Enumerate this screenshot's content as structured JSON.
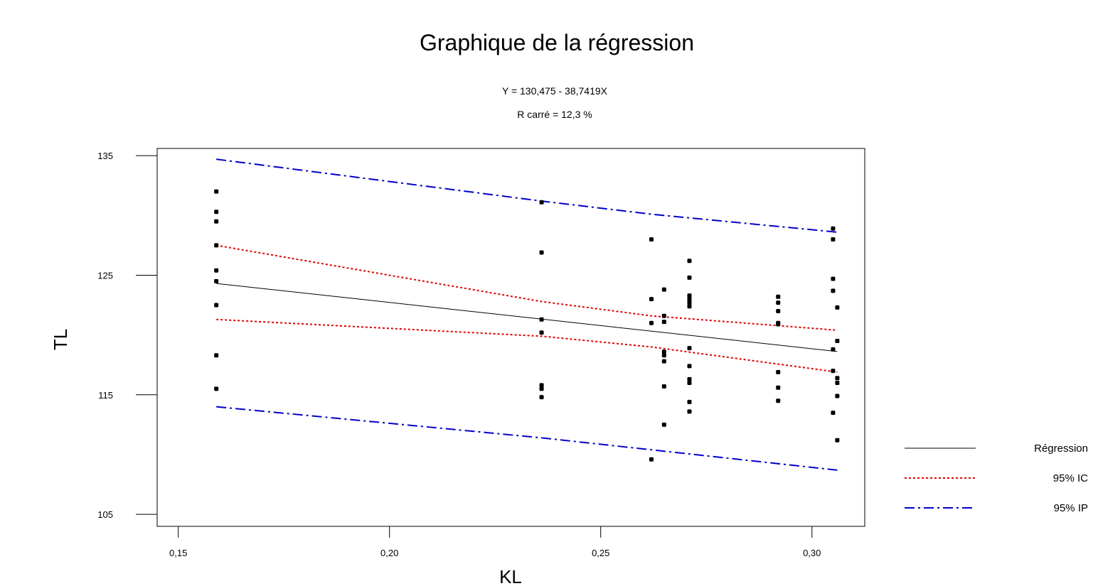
{
  "chart_data": {
    "type": "scatter",
    "title": "Graphique de la régression",
    "subtitle_lines": [
      "Y = 130,475 - 38,7419X",
      "R carré = 12,3 %"
    ],
    "xlabel": "KL",
    "ylabel": "TL",
    "xlim": [
      0.145,
      0.3125
    ],
    "ylim": [
      104,
      135.6
    ],
    "x_ticks": [
      0.15,
      0.2,
      0.25,
      0.3
    ],
    "x_tick_labels": [
      "0,15",
      "0,20",
      "0,25",
      "0,30"
    ],
    "y_ticks": [
      105,
      115,
      125,
      135
    ],
    "y_tick_labels": [
      "105",
      "115",
      "125",
      "135"
    ],
    "grid": false,
    "legend_position": "right",
    "colors": {
      "points": "#000000",
      "regression": "#000000",
      "ci": "#e00000",
      "pi": "#0000cc"
    },
    "series": [
      {
        "name": "Régression",
        "kind": "line",
        "style": "solid",
        "x": [
          0.159,
          0.306
        ],
        "y": [
          124.31,
          118.62
        ]
      },
      {
        "name": "95% IC",
        "kind": "band",
        "style": "dotted",
        "x": [
          0.159,
          0.236,
          0.262,
          0.306
        ],
        "upper": [
          127.5,
          122.8,
          121.6,
          120.4
        ],
        "lower": [
          121.3,
          119.9,
          119.0,
          116.9
        ]
      },
      {
        "name": "95% IP",
        "kind": "band",
        "style": "dashdot",
        "x": [
          0.159,
          0.236,
          0.262,
          0.306
        ],
        "upper": [
          134.7,
          131.2,
          130.1,
          128.6
        ],
        "lower": [
          114.0,
          111.4,
          110.4,
          108.7
        ]
      },
      {
        "name": "",
        "kind": "points",
        "points": [
          [
            0.159,
            132.0
          ],
          [
            0.159,
            130.3
          ],
          [
            0.159,
            129.5
          ],
          [
            0.159,
            127.5
          ],
          [
            0.159,
            125.4
          ],
          [
            0.159,
            124.5
          ],
          [
            0.159,
            122.5
          ],
          [
            0.159,
            118.3
          ],
          [
            0.159,
            115.5
          ],
          [
            0.236,
            131.1
          ],
          [
            0.236,
            126.9
          ],
          [
            0.236,
            121.3
          ],
          [
            0.236,
            120.2
          ],
          [
            0.236,
            115.8
          ],
          [
            0.236,
            115.5
          ],
          [
            0.236,
            114.8
          ],
          [
            0.262,
            128.0
          ],
          [
            0.262,
            123.0
          ],
          [
            0.262,
            121.0
          ],
          [
            0.262,
            109.6
          ],
          [
            0.265,
            123.8
          ],
          [
            0.265,
            121.6
          ],
          [
            0.265,
            121.1
          ],
          [
            0.265,
            118.6
          ],
          [
            0.265,
            118.3
          ],
          [
            0.265,
            117.8
          ],
          [
            0.265,
            115.7
          ],
          [
            0.265,
            112.5
          ],
          [
            0.271,
            126.2
          ],
          [
            0.271,
            124.8
          ],
          [
            0.271,
            123.3
          ],
          [
            0.271,
            123.0
          ],
          [
            0.271,
            122.7
          ],
          [
            0.271,
            122.4
          ],
          [
            0.271,
            118.9
          ],
          [
            0.271,
            117.4
          ],
          [
            0.271,
            116.3
          ],
          [
            0.271,
            116.0
          ],
          [
            0.271,
            114.4
          ],
          [
            0.271,
            113.6
          ],
          [
            0.292,
            123.2
          ],
          [
            0.292,
            122.7
          ],
          [
            0.292,
            122.0
          ],
          [
            0.292,
            121.0
          ],
          [
            0.292,
            120.9
          ],
          [
            0.292,
            116.9
          ],
          [
            0.292,
            115.6
          ],
          [
            0.292,
            114.5
          ],
          [
            0.305,
            128.9
          ],
          [
            0.305,
            128.0
          ],
          [
            0.305,
            124.7
          ],
          [
            0.305,
            123.7
          ],
          [
            0.305,
            118.8
          ],
          [
            0.305,
            117.0
          ],
          [
            0.305,
            113.5
          ],
          [
            0.306,
            122.3
          ],
          [
            0.306,
            119.5
          ],
          [
            0.306,
            116.4
          ],
          [
            0.306,
            116.0
          ],
          [
            0.306,
            114.9
          ],
          [
            0.306,
            111.2
          ]
        ]
      }
    ]
  }
}
